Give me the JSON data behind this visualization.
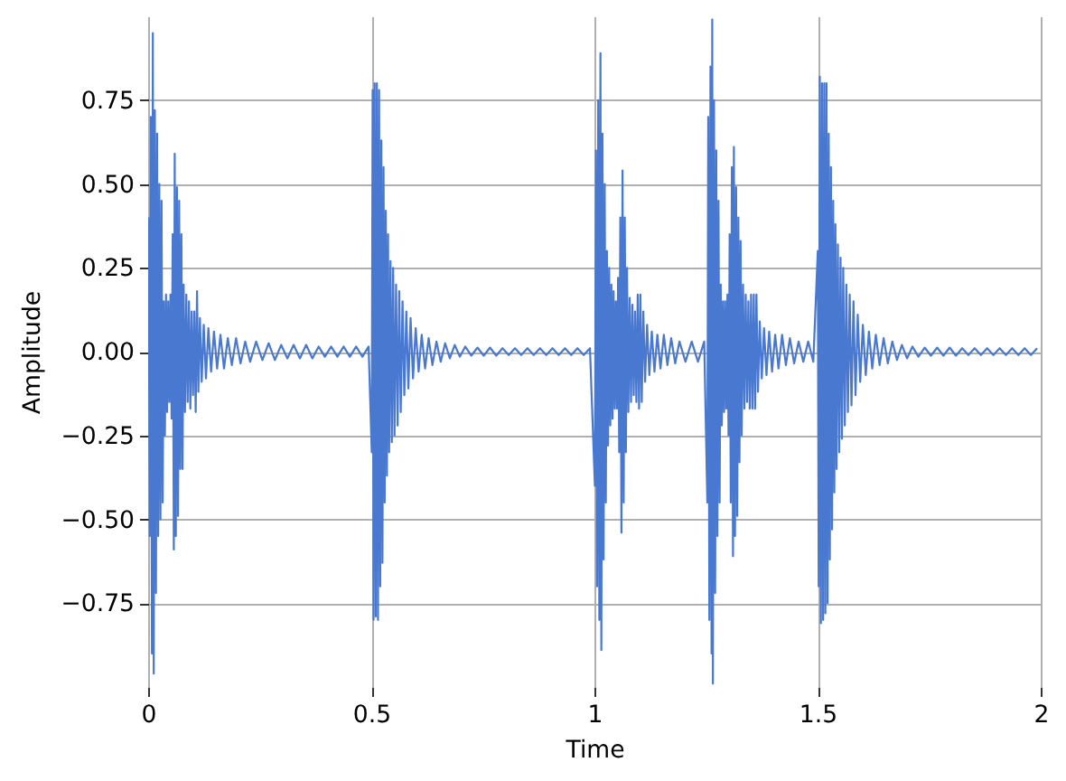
{
  "chart_data": {
    "type": "line",
    "xlabel": "Time",
    "ylabel": "Amplitude",
    "color": "#4878d0",
    "xlim": [
      0,
      2
    ],
    "ylim": [
      -1,
      1
    ],
    "xticks": [
      0,
      0.5,
      1,
      1.5,
      2
    ],
    "yticks": [
      {
        "value": -0.75,
        "label": "−0.75"
      },
      {
        "value": -0.5,
        "label": "−0.50"
      },
      {
        "value": -0.25,
        "label": "−0.25"
      },
      {
        "value": 0,
        "label": "0.00"
      },
      0.25,
      {
        "value": 0.5,
        "label": "0.50"
      },
      0.75
    ],
    "grid": true,
    "x": [
      0.001,
      0.0035,
      0.006,
      0.0085,
      0.0105,
      0.0125,
      0.015,
      0.0175,
      0.02,
      0.0225,
      0.025,
      0.0275,
      0.03,
      0.0325,
      0.035,
      0.0375,
      0.04,
      0.0425,
      0.045,
      0.0475,
      0.05,
      0.0525,
      0.055,
      0.0575,
      0.0595,
      0.062,
      0.0645,
      0.067,
      0.0695,
      0.072,
      0.0745,
      0.077,
      0.0795,
      0.0825,
      0.0855,
      0.0885,
      0.0915,
      0.0945,
      0.0975,
      0.1005,
      0.1035,
      0.1065,
      0.1095,
      0.1125,
      0.116,
      0.12,
      0.1245,
      0.1295,
      0.135,
      0.141,
      0.1475,
      0.1545,
      0.162,
      0.17,
      0.1785,
      0.1875,
      0.197,
      0.207,
      0.2175,
      0.2285,
      0.242,
      0.256,
      0.27,
      0.284,
      0.298,
      0.312,
      0.326,
      0.34,
      0.354,
      0.368,
      0.382,
      0.396,
      0.41,
      0.424,
      0.438,
      0.452,
      0.466,
      0.48,
      0.494,
      0.501,
      0.503,
      0.505,
      0.5075,
      0.51,
      0.5125,
      0.515,
      0.5175,
      0.52,
      0.5225,
      0.525,
      0.5275,
      0.53,
      0.5325,
      0.535,
      0.5375,
      0.54,
      0.543,
      0.546,
      0.549,
      0.552,
      0.5555,
      0.559,
      0.5625,
      0.566,
      0.57,
      0.574,
      0.5785,
      0.583,
      0.588,
      0.5935,
      0.5995,
      0.606,
      0.613,
      0.6205,
      0.6285,
      0.637,
      0.646,
      0.6555,
      0.6655,
      0.676,
      0.687,
      0.6985,
      0.7105,
      0.724,
      0.738,
      0.752,
      0.766,
      0.78,
      0.794,
      0.808,
      0.822,
      0.836,
      0.85,
      0.864,
      0.878,
      0.892,
      0.906,
      0.92,
      0.934,
      0.948,
      0.962,
      0.976,
      0.99,
      1.001,
      1.0035,
      1.006,
      1.0085,
      1.011,
      1.0135,
      1.0155,
      1.018,
      1.0205,
      1.023,
      1.0255,
      1.028,
      1.0305,
      1.033,
      1.0355,
      1.038,
      1.0405,
      1.043,
      1.0455,
      1.048,
      1.0505,
      1.053,
      1.0555,
      1.058,
      1.0605,
      1.063,
      1.0655,
      1.068,
      1.0705,
      1.073,
      1.076,
      1.079,
      1.082,
      1.085,
      1.088,
      1.091,
      1.094,
      1.097,
      1.1,
      1.103,
      1.106,
      1.1095,
      1.1135,
      1.118,
      1.123,
      1.1285,
      1.1345,
      1.141,
      1.148,
      1.1555,
      1.1635,
      1.172,
      1.181,
      1.1905,
      1.204,
      1.218,
      1.232,
      1.246,
      1.253,
      1.255,
      1.2575,
      1.26,
      1.2625,
      1.264,
      1.2655,
      1.268,
      1.2705,
      1.273,
      1.2755,
      1.278,
      1.2805,
      1.283,
      1.2855,
      1.288,
      1.2905,
      1.293,
      1.2955,
      1.298,
      1.3005,
      1.303,
      1.3055,
      1.308,
      1.3105,
      1.3125,
      1.315,
      1.3175,
      1.32,
      1.3225,
      1.325,
      1.3275,
      1.33,
      1.333,
      1.336,
      1.339,
      1.342,
      1.345,
      1.348,
      1.351,
      1.354,
      1.357,
      1.36,
      1.363,
      1.3665,
      1.3705,
      1.375,
      1.38,
      1.3855,
      1.3915,
      1.398,
      1.405,
      1.4125,
      1.4205,
      1.429,
      1.438,
      1.4475,
      1.4575,
      1.468,
      1.479,
      1.4905,
      1.5005,
      1.5025,
      1.505,
      1.5075,
      1.51,
      1.5125,
      1.515,
      1.5175,
      1.52,
      1.5225,
      1.525,
      1.5275,
      1.53,
      1.5325,
      1.535,
      1.5375,
      1.54,
      1.5425,
      1.5455,
      1.5485,
      1.5515,
      1.5545,
      1.5575,
      1.561,
      1.5645,
      1.568,
      1.572,
      1.576,
      1.5805,
      1.585,
      1.59,
      1.5955,
      1.6015,
      1.608,
      1.615,
      1.6225,
      1.6305,
      1.639,
      1.648,
      1.6575,
      1.6675,
      1.678,
      1.689,
      1.7005,
      1.7125,
      1.726,
      1.74,
      1.754,
      1.768,
      1.782,
      1.796,
      1.81,
      1.824,
      1.838,
      1.852,
      1.866,
      1.88,
      1.894,
      1.908,
      1.922,
      1.936,
      1.95,
      1.964,
      1.978,
      1.992
    ],
    "values": [
      0.4,
      -0.55,
      0.7,
      -0.9,
      0.95,
      -0.96,
      0.72,
      -0.72,
      0.65,
      -0.55,
      0.5,
      -0.5,
      0.45,
      -0.45,
      0.15,
      -0.25,
      0.17,
      -0.18,
      0.15,
      -0.15,
      0.17,
      -0.2,
      0.35,
      -0.59,
      0.59,
      -0.55,
      0.49,
      -0.49,
      0.45,
      -0.35,
      0.35,
      -0.35,
      0.2,
      -0.18,
      0.17,
      -0.15,
      0.15,
      -0.17,
      0.12,
      -0.13,
      0.12,
      -0.18,
      0.18,
      -0.12,
      0.1,
      -0.09,
      0.08,
      -0.08,
      0.07,
      -0.06,
      0.06,
      -0.05,
      0.05,
      -0.05,
      0.04,
      -0.04,
      0.04,
      -0.035,
      0.03,
      -0.03,
      0.03,
      -0.025,
      0.025,
      -0.025,
      0.02,
      -0.02,
      0.02,
      -0.02,
      0.02,
      -0.02,
      0.015,
      -0.015,
      0.015,
      -0.015,
      0.015,
      -0.015,
      0.015,
      -0.015,
      0.015,
      -0.3,
      0.78,
      -0.8,
      0.8,
      -0.79,
      0.8,
      -0.8,
      0.78,
      -0.7,
      0.63,
      -0.63,
      0.55,
      -0.45,
      0.42,
      -0.37,
      0.35,
      -0.3,
      0.27,
      -0.27,
      0.25,
      -0.25,
      0.2,
      -0.22,
      0.18,
      -0.18,
      0.15,
      -0.13,
      0.12,
      -0.11,
      0.1,
      -0.08,
      0.07,
      -0.06,
      0.05,
      -0.05,
      0.04,
      -0.04,
      0.03,
      -0.03,
      0.025,
      -0.02,
      0.02,
      -0.015,
      0.015,
      -0.012,
      0.012,
      -0.012,
      0.012,
      -0.012,
      0.01,
      -0.01,
      0.01,
      -0.01,
      0.01,
      -0.01,
      0.01,
      -0.01,
      0.01,
      -0.01,
      0.01,
      -0.01,
      0.01,
      -0.01,
      0.01,
      -0.4,
      0.6,
      -0.7,
      0.75,
      -0.8,
      0.89,
      -0.89,
      0.65,
      -0.62,
      0.5,
      -0.45,
      0.3,
      -0.28,
      0.25,
      -0.22,
      0.2,
      -0.2,
      0.18,
      -0.17,
      0.15,
      -0.17,
      0.22,
      -0.3,
      0.4,
      -0.54,
      0.54,
      -0.45,
      0.4,
      -0.3,
      0.25,
      -0.18,
      0.16,
      -0.15,
      0.14,
      -0.13,
      0.12,
      -0.15,
      0.17,
      -0.17,
      0.17,
      -0.15,
      0.12,
      -0.09,
      0.08,
      -0.07,
      0.06,
      -0.06,
      0.05,
      -0.05,
      0.05,
      -0.04,
      0.04,
      -0.035,
      0.03,
      -0.03,
      0.03,
      -0.03,
      0.03,
      -0.45,
      0.7,
      -0.8,
      0.85,
      -0.9,
      0.99,
      -0.99,
      0.75,
      -0.72,
      0.6,
      -0.55,
      0.45,
      -0.45,
      0.2,
      -0.22,
      0.15,
      -0.18,
      0.15,
      -0.17,
      0.17,
      -0.25,
      0.35,
      -0.45,
      0.55,
      -0.61,
      0.61,
      -0.55,
      0.49,
      -0.49,
      0.4,
      -0.33,
      0.33,
      -0.25,
      0.2,
      -0.17,
      0.17,
      -0.15,
      0.15,
      -0.17,
      0.17,
      -0.17,
      0.17,
      -0.17,
      0.17,
      -0.12,
      0.09,
      -0.08,
      0.07,
      -0.07,
      0.06,
      -0.06,
      0.05,
      -0.05,
      0.05,
      -0.04,
      0.04,
      -0.035,
      0.03,
      -0.03,
      0.03,
      -0.03,
      0.3,
      -0.7,
      0.82,
      -0.81,
      0.8,
      -0.8,
      0.8,
      -0.78,
      0.8,
      -0.75,
      0.65,
      -0.62,
      0.55,
      -0.53,
      0.45,
      -0.42,
      0.38,
      -0.35,
      0.32,
      -0.3,
      0.28,
      -0.26,
      0.25,
      -0.22,
      0.2,
      -0.18,
      0.17,
      -0.16,
      0.15,
      -0.13,
      0.11,
      -0.09,
      0.08,
      -0.07,
      0.06,
      -0.05,
      0.05,
      -0.04,
      0.04,
      -0.035,
      0.03,
      -0.025,
      0.02,
      -0.02,
      0.015,
      -0.015,
      0.012,
      -0.012,
      0.012,
      -0.012,
      0.012,
      -0.012,
      0.01,
      -0.01,
      0.01,
      -0.01,
      0.01,
      -0.01,
      0.01,
      -0.01,
      0.01,
      -0.01,
      0.01,
      -0.01,
      0.01
    ]
  }
}
